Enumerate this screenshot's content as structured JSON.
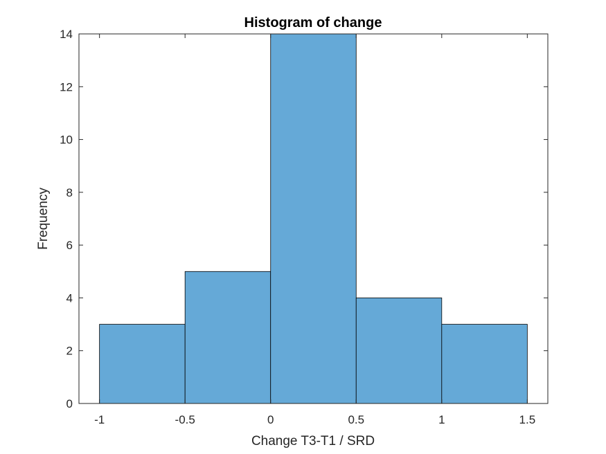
{
  "chart_data": {
    "type": "bar",
    "title": "Histogram of change",
    "xlabel": "Change T3-T1 / SRD",
    "ylabel": "Frequency",
    "bin_edges": [
      -1,
      -0.5,
      0,
      0.5,
      1,
      1.5
    ],
    "values": [
      3,
      5,
      14,
      4,
      3
    ],
    "xlim": [
      -1.12,
      1.62
    ],
    "ylim": [
      0,
      14
    ],
    "xticks": [
      -1,
      -0.5,
      0,
      0.5,
      1,
      1.5
    ],
    "xtick_labels": [
      "-1",
      "-0.5",
      "0",
      "0.5",
      "1",
      "1.5"
    ],
    "yticks": [
      0,
      2,
      4,
      6,
      8,
      10,
      12,
      14
    ],
    "ytick_labels": [
      "0",
      "2",
      "4",
      "6",
      "8",
      "10",
      "12",
      "14"
    ],
    "grid": false,
    "bar_color": "#65a9d7",
    "edge_color": "#000000"
  }
}
